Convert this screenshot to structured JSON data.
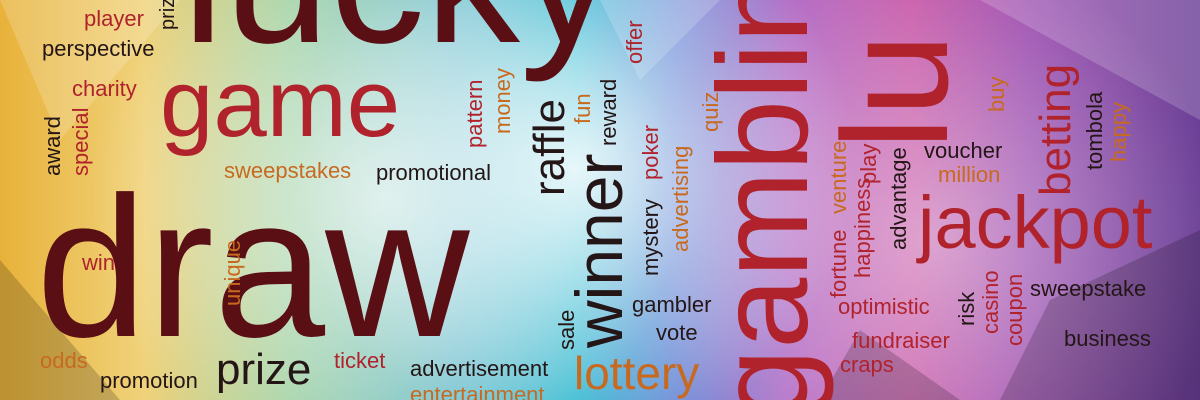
{
  "colors": {
    "dark": "#5a0f15",
    "red": "#b0232c",
    "black": "#241617",
    "orange": "#c76a1f",
    "background_left": "#e8b23a",
    "background_center": "#2bb7cf",
    "background_right": "#9b4fb0"
  },
  "words": {
    "lucky": "lucky",
    "gambling": "gambling",
    "lu": "lu",
    "draw": "draw",
    "game": "game",
    "jackpot": "jackpot",
    "winner": "winner",
    "lottery": "lottery",
    "prize": "prize",
    "raffle": "raffle",
    "betting": "betting",
    "player": "player",
    "prize_top": "prize",
    "perspective": "perspective",
    "charity": "charity",
    "award": "award",
    "special": "special",
    "sweepstakes": "sweepstakes",
    "promotional": "promotional",
    "win": "win",
    "unique": "unique",
    "odds": "odds",
    "promotion": "promotion",
    "ticket": "ticket",
    "advertisement": "advertisement",
    "entertainment": "entertainment",
    "sale": "sale",
    "pattern": "pattern",
    "money": "money",
    "fun": "fun",
    "reward": "reward",
    "offer": "offer",
    "poker": "poker",
    "mystery": "mystery",
    "advertising": "advertising",
    "quiz": "quiz",
    "gambler": "gambler",
    "vote": "vote",
    "fortune": "fortune",
    "venture": "venture",
    "happiness": "happiness",
    "play": "play",
    "advantage": "advantage",
    "optimistic": "optimistic",
    "fundraiser": "fundraiser",
    "craps": "craps",
    "voucher": "voucher",
    "million": "million",
    "buy": "buy",
    "tombola": "tombola",
    "happy": "happy",
    "risk": "risk",
    "casino": "casino",
    "coupon": "coupon",
    "sweepstake": "sweepstake",
    "business": "business"
  }
}
